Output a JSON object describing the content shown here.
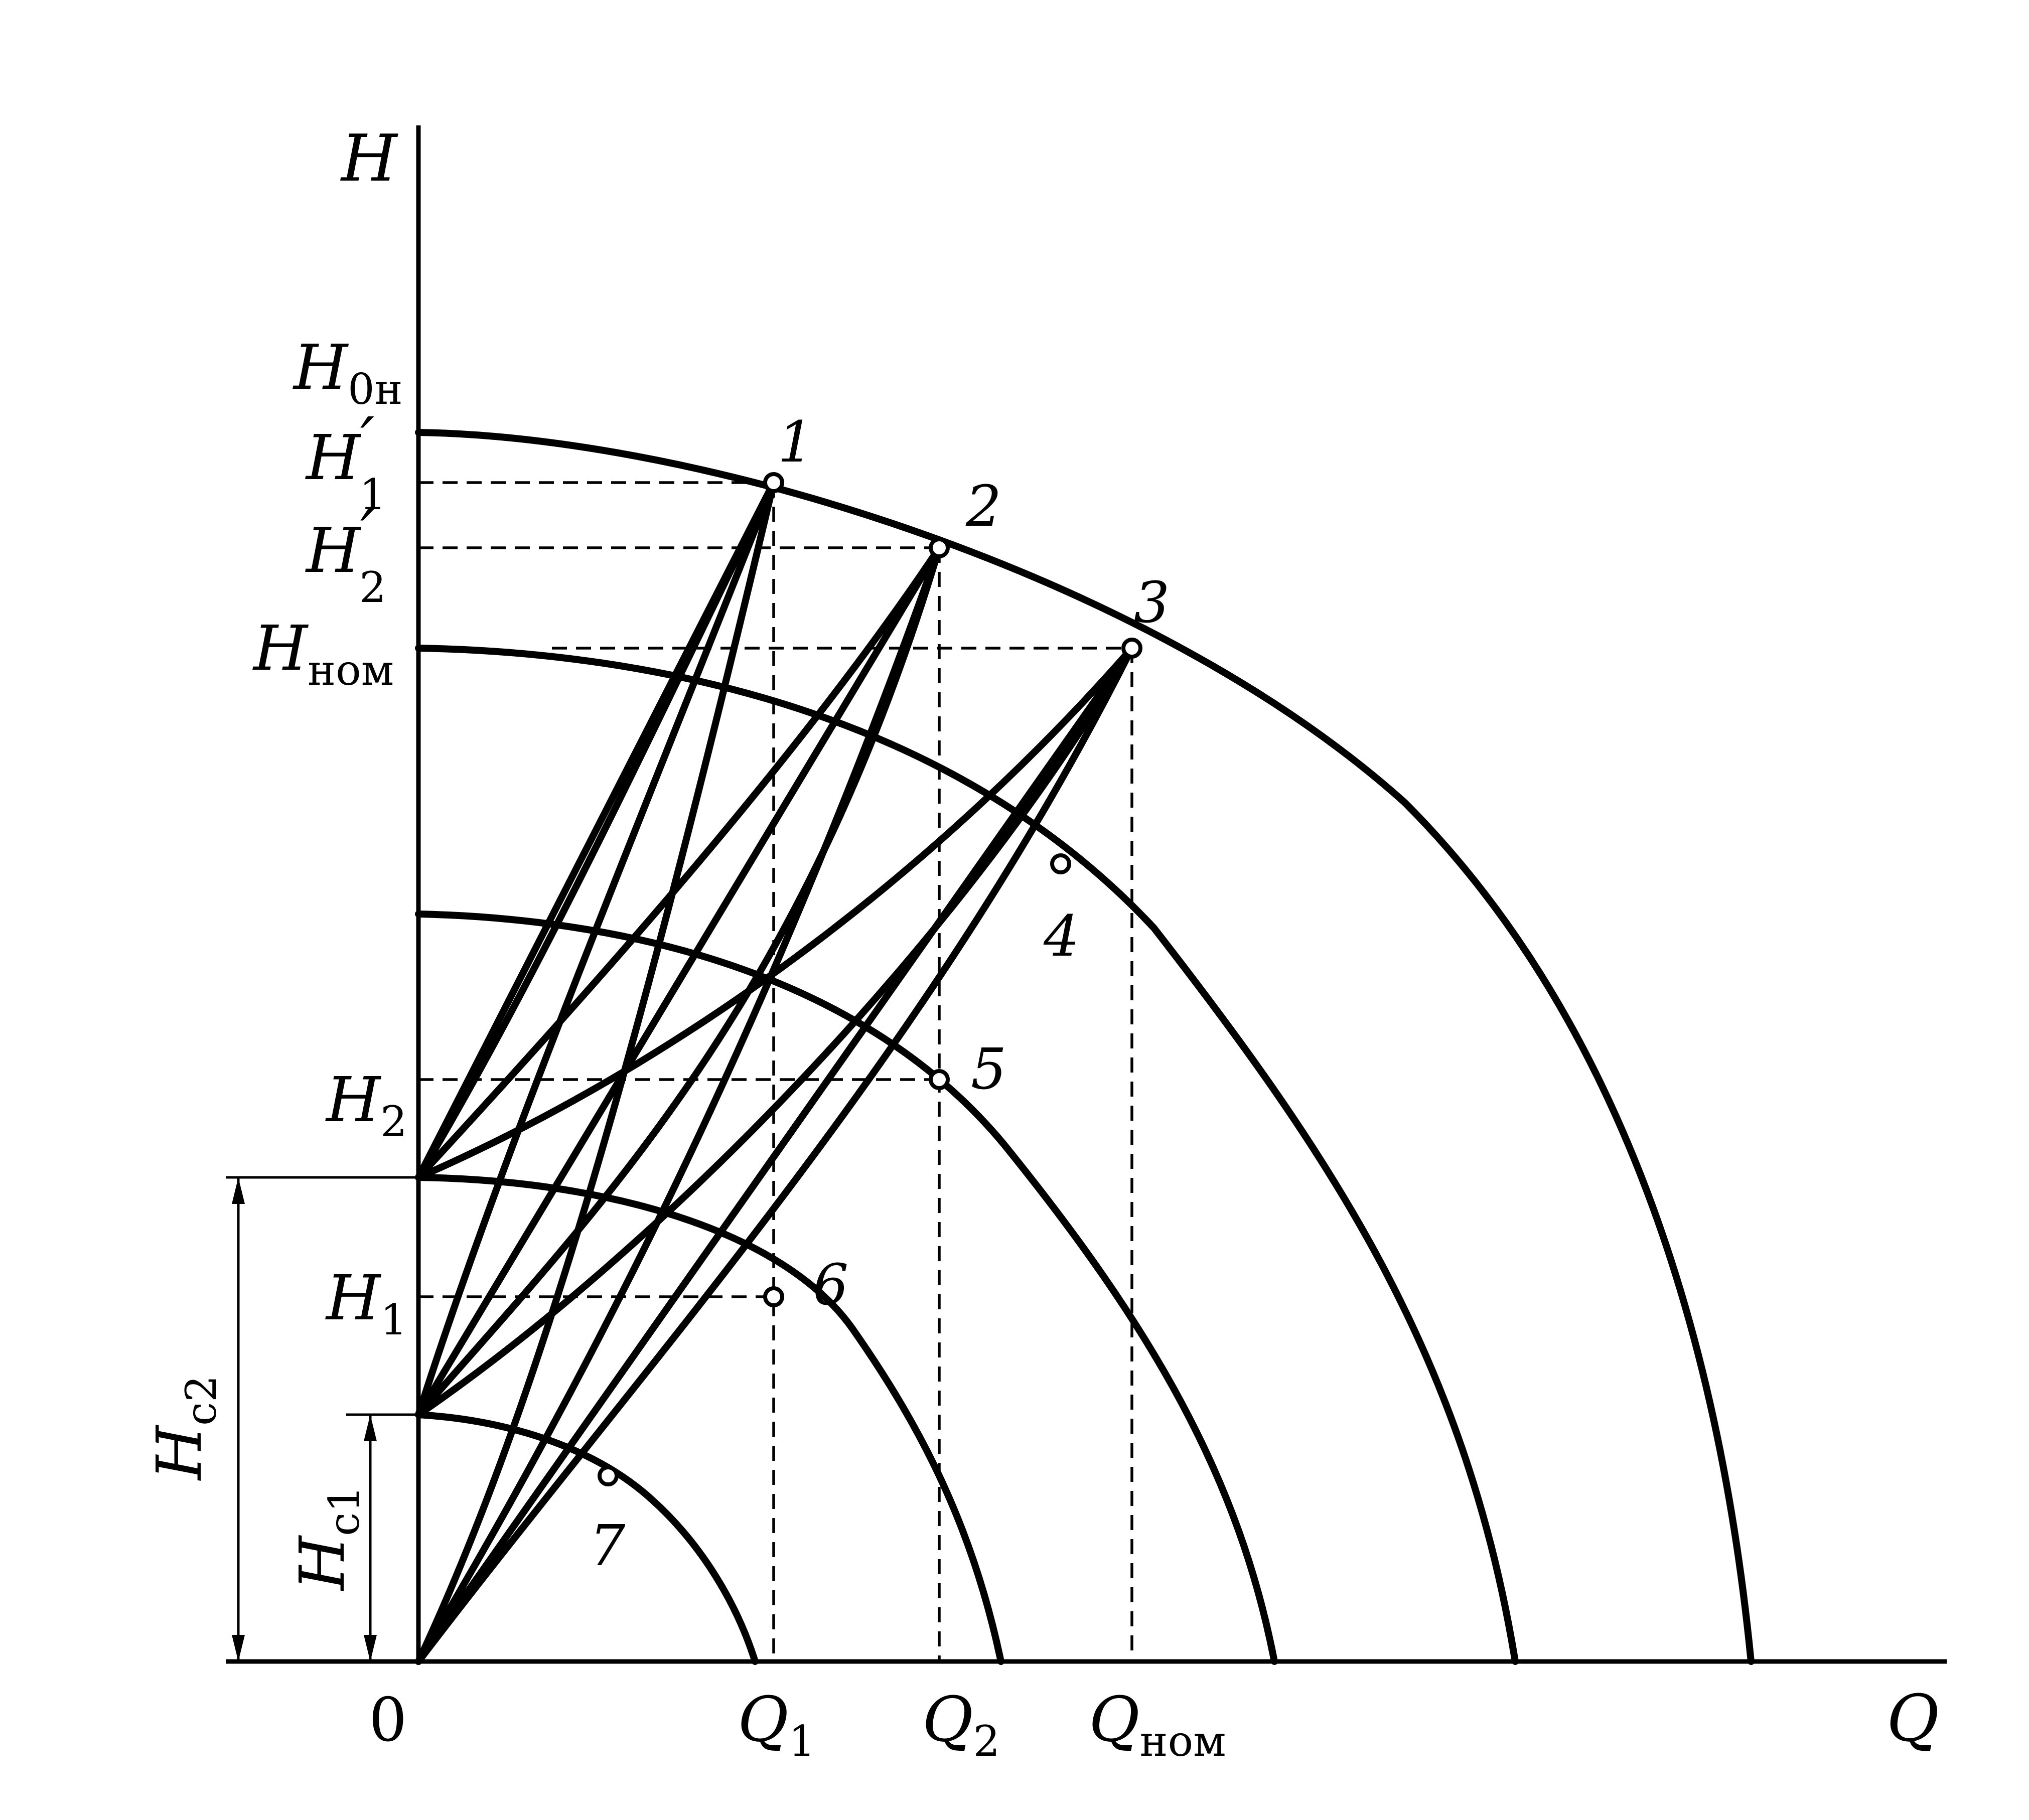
{
  "axes": {
    "y_label": "H",
    "x_label": "Q",
    "origin_label": "0"
  },
  "y_labels": {
    "h0n": {
      "main": "H",
      "sub": "0н"
    },
    "h1p": {
      "main": "H",
      "prime": "′",
      "sub": "1"
    },
    "h2p": {
      "main": "H",
      "prime": "′",
      "sub": "2"
    },
    "hnom": {
      "main": "H",
      "sub": "ном"
    },
    "h2": {
      "main": "H",
      "sub": "2"
    },
    "h1": {
      "main": "H",
      "sub": "1"
    }
  },
  "x_labels": {
    "q1": {
      "main": "Q",
      "sub": "1"
    },
    "q2": {
      "main": "Q",
      "sub": "2"
    },
    "qnom": {
      "main": "Q",
      "sub": "ном"
    }
  },
  "dimensions": {
    "hc2": {
      "main": "H",
      "sub": "c2"
    },
    "hc1": {
      "main": "H",
      "sub": "c1"
    }
  },
  "points": [
    "1",
    "2",
    "3",
    "4",
    "5",
    "6",
    "7"
  ]
}
